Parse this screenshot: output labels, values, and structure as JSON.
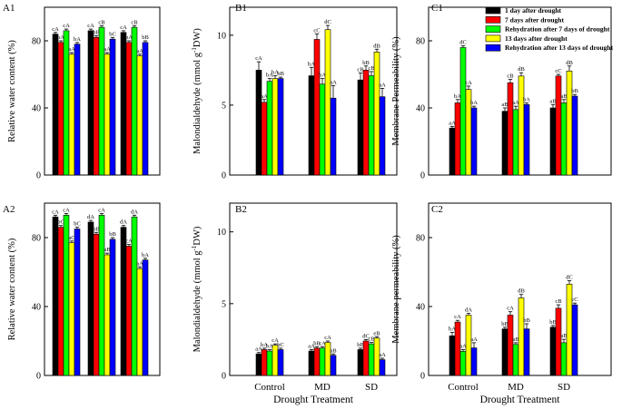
{
  "figure": {
    "legend": [
      {
        "label": "1 day after drought",
        "color": "#000000"
      },
      {
        "label": "7 days after drought",
        "color": "#ff0000"
      },
      {
        "label": "Rehydration after 7 days of drought",
        "color": "#00ff00"
      },
      {
        "label": "13 days after drought",
        "color": "#ffff00"
      },
      {
        "label": "Rehydration after 13 days of drought",
        "color": "#0000ff"
      }
    ]
  },
  "chart_data": [
    {
      "id": "A1",
      "type": "bar",
      "panel_label": "A1",
      "ylabel": "Relative water content (%)",
      "xlabel": "",
      "ylim": [
        0,
        100
      ],
      "yticks": [
        0,
        40,
        80
      ],
      "categories": [
        "Control",
        "MD",
        "SD"
      ],
      "series": [
        {
          "name": "1 day after drought",
          "values": [
            84,
            86,
            85
          ],
          "errors": [
            1,
            1,
            1
          ],
          "labels": [
            "cA",
            "cA",
            "cA"
          ]
        },
        {
          "name": "7 days after drought",
          "values": [
            79,
            82,
            79
          ],
          "errors": [
            1,
            1,
            1
          ],
          "labels": [
            "bA",
            "bB",
            "bA"
          ]
        },
        {
          "name": "Rehydration after 7 days of drought",
          "values": [
            86,
            88,
            88
          ],
          "errors": [
            1,
            1,
            1
          ],
          "labels": [
            "cA",
            "cB",
            "cB"
          ]
        },
        {
          "name": "13 days after drought",
          "values": [
            72,
            72,
            71
          ],
          "errors": [
            1,
            1,
            1
          ],
          "labels": [
            "aA",
            "aA",
            "aA"
          ]
        },
        {
          "name": "Rehydration after 13 days of drought",
          "values": [
            78,
            81,
            79
          ],
          "errors": [
            1,
            1,
            1
          ],
          "labels": [
            "bA",
            "bC",
            "bB"
          ]
        }
      ]
    },
    {
      "id": "B1",
      "type": "bar",
      "panel_label": "B1",
      "ylabel": "Malondialdehyde (mmol g-1DW)",
      "xlabel": "",
      "ylim": [
        0,
        12
      ],
      "yticks": [
        0,
        5,
        10
      ],
      "categories": [
        "Control",
        "MD",
        "SD"
      ],
      "series": [
        {
          "name": "1 day after drought",
          "values": [
            7.5,
            7.1,
            6.8
          ],
          "errors": [
            0.6,
            0.6,
            0.5
          ],
          "labels": [
            "cA",
            "bA",
            "cB"
          ]
        },
        {
          "name": "7 days after drought",
          "values": [
            5.2,
            9.7,
            7.5
          ],
          "errors": [
            0.2,
            0.4,
            0.3
          ],
          "labels": [
            "aA",
            "cC",
            "bB"
          ]
        },
        {
          "name": "Rehydration after 7 days of drought",
          "values": [
            6.7,
            6.5,
            7.1
          ],
          "errors": [
            0.2,
            0.4,
            0.3
          ],
          "labels": [
            "bA",
            "bA",
            "cB"
          ]
        },
        {
          "name": "13 days after drought",
          "values": [
            6.9,
            10.4,
            8.8
          ],
          "errors": [
            0.2,
            0.3,
            0.2
          ],
          "labels": [
            "bA",
            "dC",
            "dB"
          ]
        },
        {
          "name": "Rehydration after 13 days of drought",
          "values": [
            6.9,
            5.5,
            5.6
          ],
          "errors": [
            0.1,
            0.9,
            0.6
          ],
          "labels": [
            "bB",
            "aA",
            "aA"
          ]
        }
      ]
    },
    {
      "id": "C1",
      "type": "bar",
      "panel_label": "C1",
      "ylabel": "Membrane Permeability (%)",
      "xlabel": "",
      "ylim": [
        0,
        100
      ],
      "yticks": [
        0,
        40,
        80
      ],
      "categories": [
        "Control",
        "MD",
        "SD"
      ],
      "series": [
        {
          "name": "1 day after drought",
          "values": [
            28,
            38,
            40
          ],
          "errors": [
            1,
            2,
            2
          ],
          "labels": [
            "aA",
            "aB",
            "aB"
          ]
        },
        {
          "name": "7 days after drought",
          "values": [
            43,
            55,
            59
          ],
          "errors": [
            2,
            2,
            1
          ],
          "labels": [
            "bA",
            "cB",
            "cC"
          ]
        },
        {
          "name": "Rehydration after 7 days of drought",
          "values": [
            76,
            39,
            43
          ],
          "errors": [
            1,
            2,
            2
          ],
          "labels": [
            "dC",
            "aA",
            "aB"
          ]
        },
        {
          "name": "13 days after drought",
          "values": [
            51,
            59,
            62
          ],
          "errors": [
            2,
            2,
            3
          ],
          "labels": [
            "cA",
            "dB",
            "dB"
          ]
        },
        {
          "name": "Rehydration after 13 days of drought",
          "values": [
            40,
            42,
            47
          ],
          "errors": [
            1,
            1,
            1
          ],
          "labels": [
            "bA",
            "bA",
            "bB"
          ]
        }
      ]
    },
    {
      "id": "A2",
      "type": "bar",
      "panel_label": "A2",
      "ylabel": "Relative water content (%)",
      "xlabel": "",
      "ylim": [
        0,
        100
      ],
      "yticks": [
        0,
        40,
        80
      ],
      "categories": [
        "Control",
        "MD",
        "SD"
      ],
      "series": [
        {
          "name": "1 day after drought",
          "values": [
            92,
            89,
            86
          ],
          "errors": [
            1,
            1,
            1
          ],
          "labels": [
            "cA",
            "dA",
            "dA"
          ]
        },
        {
          "name": "7 days after drought",
          "values": [
            86,
            82,
            75
          ],
          "errors": [
            1,
            1,
            1
          ],
          "labels": [
            "bC",
            "bB",
            "cA"
          ]
        },
        {
          "name": "Rehydration after 7 days of drought",
          "values": [
            93,
            93,
            92
          ],
          "errors": [
            1,
            1,
            1
          ],
          "labels": [
            "cA",
            "cA",
            "dA"
          ]
        },
        {
          "name": "13 days after drought",
          "values": [
            77,
            70,
            62
          ],
          "errors": [
            1,
            1,
            1
          ],
          "labels": [
            "aC",
            "aB",
            "aA"
          ]
        },
        {
          "name": "Rehydration after 13 days of drought",
          "values": [
            85,
            79,
            67
          ],
          "errors": [
            1,
            1,
            1
          ],
          "labels": [
            "bC",
            "bB",
            "bA"
          ]
        }
      ]
    },
    {
      "id": "B2",
      "type": "bar",
      "panel_label": "B2",
      "ylabel": "Malondialdehyde (mmol g-1DW)",
      "xlabel": "Drought Treatment",
      "ylim": [
        0,
        12
      ],
      "yticks": [
        0,
        5,
        10
      ],
      "categories": [
        "Control",
        "MD",
        "SD"
      ],
      "series": [
        {
          "name": "1 day after drought",
          "values": [
            1.5,
            1.7,
            1.8
          ],
          "errors": [
            0.1,
            0.1,
            0.1
          ],
          "labels": [
            "aA",
            "aA",
            "bB"
          ]
        },
        {
          "name": "7 days after drought",
          "values": [
            1.8,
            1.9,
            2.4
          ],
          "errors": [
            0.1,
            0.1,
            0.1
          ],
          "labels": [
            "bA",
            "bB",
            "dC"
          ]
        },
        {
          "name": "Rehydration after 7 days of drought",
          "values": [
            1.7,
            1.9,
            2.2
          ],
          "errors": [
            0.1,
            0.1,
            0.1
          ],
          "labels": [
            "bA",
            "cA",
            "cB"
          ]
        },
        {
          "name": "13 days after drought",
          "values": [
            2.1,
            2.3,
            2.6
          ],
          "errors": [
            0.1,
            0.1,
            0.1
          ],
          "labels": [
            "cA",
            "cA",
            "eB"
          ]
        },
        {
          "name": "Rehydration after 13 days of drought",
          "values": [
            1.8,
            1.4,
            1.1
          ],
          "errors": [
            0.1,
            0.1,
            0.1
          ],
          "labels": [
            "bC",
            "aB",
            "aA"
          ]
        }
      ]
    },
    {
      "id": "C2",
      "type": "bar",
      "panel_label": "C2",
      "ylabel": "Membrane permeability (%)",
      "xlabel": "Drought Treatment",
      "ylim": [
        0,
        100
      ],
      "yticks": [
        0,
        40,
        80
      ],
      "categories": [
        "Control",
        "MD",
        "SD"
      ],
      "series": [
        {
          "name": "1 day after drought",
          "values": [
            23,
            27,
            28
          ],
          "errors": [
            2,
            1,
            1
          ],
          "labels": [
            "bA",
            "bB",
            "bB"
          ]
        },
        {
          "name": "7 days after drought",
          "values": [
            31,
            35,
            39
          ],
          "errors": [
            1,
            2,
            2
          ],
          "labels": [
            "cA",
            "cA",
            "cB"
          ]
        },
        {
          "name": "Rehydration after 7 days of drought",
          "values": [
            14,
            18,
            19
          ],
          "errors": [
            1,
            1,
            2
          ],
          "labels": [
            "aA",
            "aB",
            "aB"
          ]
        },
        {
          "name": "13 days after drought",
          "values": [
            35,
            45,
            53
          ],
          "errors": [
            1,
            2,
            2
          ],
          "labels": [
            "dA",
            "dB",
            "dC"
          ]
        },
        {
          "name": "Rehydration after 13 days of drought",
          "values": [
            16,
            27,
            41
          ],
          "errors": [
            3,
            3,
            1
          ],
          "labels": [
            "aA",
            "bB",
            "cC"
          ]
        }
      ]
    }
  ]
}
